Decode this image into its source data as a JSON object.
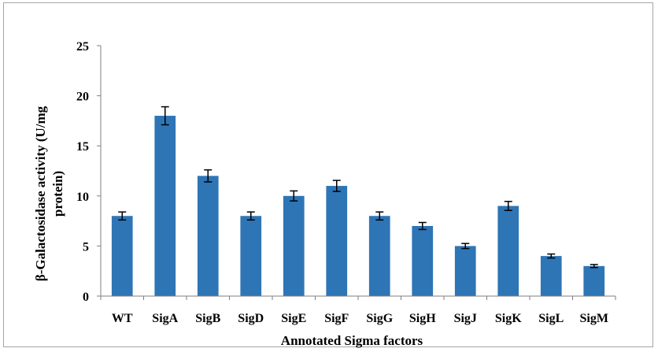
{
  "chart_data": {
    "type": "bar",
    "title": "",
    "xlabel": "Annotated Sigma factors",
    "ylabel_lines": [
      "β-Galactosidase activity (U/mg",
      "protein)"
    ],
    "categories": [
      "WT",
      "SigA",
      "SigB",
      "SigD",
      "SigE",
      "SigF",
      "SigG",
      "SigH",
      "SigJ",
      "SigK",
      "SigL",
      "SigM"
    ],
    "values": [
      8,
      18,
      12,
      8,
      10,
      11,
      8,
      7,
      5,
      9,
      4,
      3
    ],
    "errors": [
      0.4,
      0.9,
      0.6,
      0.4,
      0.5,
      0.55,
      0.4,
      0.35,
      0.25,
      0.45,
      0.2,
      0.15
    ],
    "ylim": [
      0,
      25
    ],
    "yticks": [
      0,
      5,
      10,
      15,
      20,
      25
    ],
    "grid": false,
    "legend": "none",
    "bar_color": "#2e75b6",
    "axis_color": "#7f7f7f",
    "error_bar_color": "#000000"
  }
}
